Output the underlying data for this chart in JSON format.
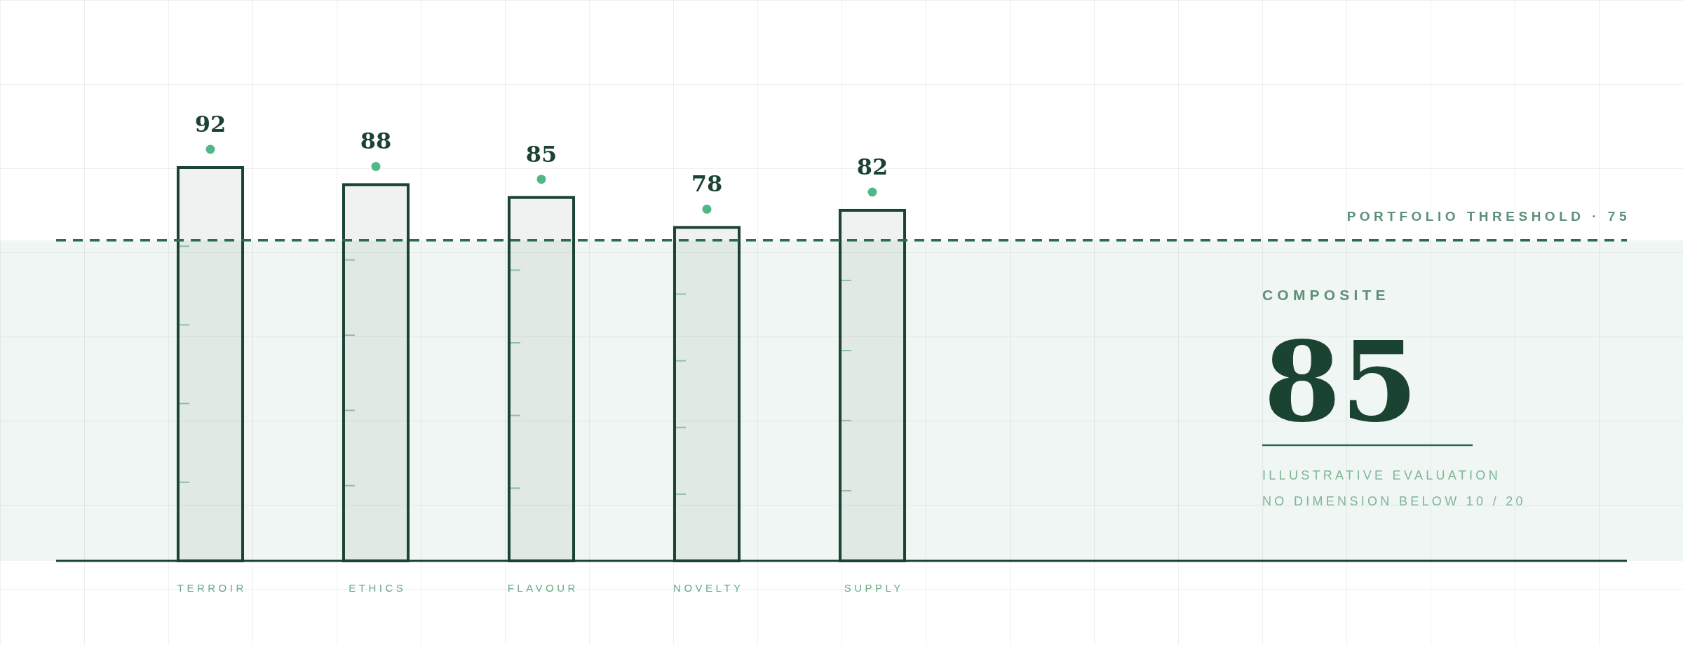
{
  "chart_data": {
    "type": "bar",
    "categories": [
      "TERROIR",
      "ETHICS",
      "FLAVOUR",
      "NOVELTY",
      "SUPPLY"
    ],
    "values": [
      92,
      88,
      85,
      78,
      82
    ],
    "color": "#1b4332",
    "tick_labels": "x",
    "data_labels": true,
    "ref_lines": [
      {
        "axis": "y",
        "value": 75,
        "label": "PORTFOLIO THRESHOLD · 75",
        "color": "#2d6a4f",
        "line_style": "dashed"
      }
    ],
    "bands": [
      {
        "axis": "y",
        "from": 0,
        "to": 75,
        "color": "#f0f6f3"
      }
    ],
    "annotations": [
      "COMPOSITE",
      "85",
      "ILLUSTRATIVE EVALUATION",
      "NO DIMENSION BELOW 10 / 20"
    ]
  }
}
